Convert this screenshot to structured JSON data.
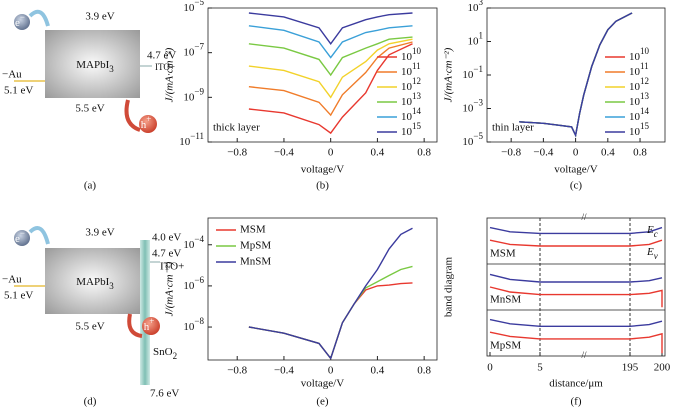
{
  "chart_data": [
    {
      "type": "line",
      "log_y": true,
      "caption": "(b)",
      "xlabel": "voltage/V",
      "ylabel": "J/(mA·cm⁻²)",
      "annotation": "thick layer",
      "legend": "center right",
      "xlim": [
        -1.05,
        0.91
      ],
      "xticks": [
        {
          "value": -0.8,
          "label": "−0.8"
        },
        {
          "value": -0.4,
          "label": "−0.4"
        },
        0,
        0.4,
        0.8
      ],
      "ylim": [
        1e-11,
        1e-05
      ],
      "yticks": [
        {
          "value": 1e-11,
          "label": [
            "10",
            "−11"
          ]
        },
        {
          "value": 1e-09,
          "label": [
            "10",
            "−9"
          ]
        },
        {
          "value": 1e-07,
          "label": [
            "10",
            "−7"
          ]
        },
        {
          "value": 1e-05,
          "label": [
            "10",
            "−5"
          ]
        }
      ],
      "x": [
        -0.7,
        -0.4,
        -0.1,
        0,
        0.1,
        0.3,
        0.4,
        0.5,
        0.7
      ],
      "series": [
        {
          "name": [
            "10",
            "10"
          ],
          "color": "#e8382f",
          "values": [
            3e-10,
            2e-10,
            6e-11,
            2.5e-11,
            1.3e-10,
            1.6e-09,
            1.6e-08,
            8e-08,
            2.5e-07
          ]
        },
        {
          "name": [
            "10",
            "11"
          ],
          "color": "#f07c2a",
          "values": [
            3e-09,
            2e-09,
            6e-10,
            1.6e-10,
            1.3e-09,
            1.3e-08,
            6e-08,
            1.6e-07,
            3e-07
          ]
        },
        {
          "name": [
            "10",
            "12"
          ],
          "color": "#f2d22a",
          "values": [
            2.5e-08,
            1.6e-08,
            5e-09,
            1e-09,
            8e-09,
            4e-08,
            1.3e-07,
            2.5e-07,
            4e-07
          ]
        },
        {
          "name": [
            "10",
            "13"
          ],
          "color": "#7ac943",
          "values": [
            2.5e-07,
            1.6e-07,
            5e-08,
            1e-08,
            6e-08,
            1.6e-07,
            2.5e-07,
            4e-07,
            5e-07
          ]
        },
        {
          "name": [
            "10",
            "14"
          ],
          "color": "#3aa0d8",
          "values": [
            1.6e-06,
            1e-06,
            3e-07,
            6e-08,
            3e-07,
            8e-07,
            1e-06,
            1.3e-06,
            1.6e-06
          ]
        },
        {
          "name": [
            "10",
            "15"
          ],
          "color": "#3b3b9e",
          "values": [
            6e-06,
            4e-06,
            1.3e-06,
            2.5e-07,
            1.3e-06,
            3e-06,
            4e-06,
            5e-06,
            6e-06
          ]
        }
      ]
    },
    {
      "type": "line",
      "log_y": true,
      "caption": "(c)",
      "xlabel": "voltage/V",
      "ylabel": "J/(mA·cm⁻²)",
      "annotation": "thin layer",
      "legend": "center right",
      "xlim": [
        -1.1,
        1.11
      ],
      "xticks": [
        {
          "value": -0.8,
          "label": "−0.8"
        },
        {
          "value": -0.4,
          "label": "−0.4"
        },
        0,
        0.4,
        0.8
      ],
      "ylim": [
        1e-05,
        1000
      ],
      "yticks": [
        {
          "value": 1e-05,
          "label": [
            "10",
            "−5"
          ]
        },
        {
          "value": 0.001,
          "label": [
            "10",
            "−3"
          ]
        },
        {
          "value": 0.1,
          "label": [
            "10",
            "−1"
          ]
        },
        {
          "value": 10,
          "label": [
            "10",
            "1"
          ]
        },
        {
          "value": 1000,
          "label": [
            "10",
            "3"
          ]
        }
      ],
      "x": [
        -0.7,
        -0.4,
        -0.2,
        -0.05,
        0,
        0.05,
        0.1,
        0.2,
        0.3,
        0.4,
        0.5,
        0.7
      ],
      "series": [
        {
          "name": [
            "10",
            "10"
          ],
          "color": "#e8382f",
          "values": [
            0.00016,
            0.00013,
            0.0001,
            8e-05,
            2.5e-05,
            0.0005,
            0.0063,
            0.32,
            6.3,
            50,
            160,
            500
          ]
        },
        {
          "name": [
            "10",
            "11"
          ],
          "color": "#f07c2a",
          "values": [
            0.00016,
            0.00013,
            0.0001,
            8e-05,
            2.5e-05,
            0.0005,
            0.0063,
            0.32,
            6.3,
            50,
            160,
            500
          ]
        },
        {
          "name": [
            "10",
            "12"
          ],
          "color": "#f2d22a",
          "values": [
            0.00016,
            0.00013,
            0.0001,
            8e-05,
            2.5e-05,
            0.0005,
            0.0063,
            0.32,
            6.3,
            50,
            160,
            500
          ]
        },
        {
          "name": [
            "10",
            "13"
          ],
          "color": "#7ac943",
          "values": [
            0.00016,
            0.00013,
            0.0001,
            8e-05,
            2.5e-05,
            0.0005,
            0.0063,
            0.32,
            6.3,
            50,
            160,
            500
          ]
        },
        {
          "name": [
            "10",
            "14"
          ],
          "color": "#3aa0d8",
          "values": [
            0.00016,
            0.00013,
            0.0001,
            8e-05,
            2.5e-05,
            0.0005,
            0.0063,
            0.32,
            6.3,
            50,
            160,
            500
          ]
        },
        {
          "name": [
            "10",
            "15"
          ],
          "color": "#3b3b9e",
          "values": [
            0.00016,
            0.00013,
            0.0001,
            8e-05,
            2.5e-05,
            0.0005,
            0.0063,
            0.32,
            6.3,
            50,
            160,
            500
          ]
        }
      ]
    },
    {
      "type": "line",
      "log_y": true,
      "caption": "(e)",
      "xlabel": "voltage/V",
      "ylabel": "J/(mA·cm⁻²)",
      "legend": "upper left",
      "xlim": [
        -1.05,
        0.91
      ],
      "xticks": [
        {
          "value": -0.8,
          "label": "−0.8"
        },
        {
          "value": -0.4,
          "label": "−0.4"
        },
        0,
        0.4,
        0.8
      ],
      "ylim": [
        2.5e-10,
        0.002
      ],
      "yticks": [
        {
          "value": 1e-08,
          "label": [
            "10",
            "−8"
          ]
        },
        {
          "value": 1e-06,
          "label": [
            "10",
            "−6"
          ]
        },
        {
          "value": 0.0001,
          "label": [
            "10",
            "−4"
          ]
        }
      ],
      "x": [
        -0.7,
        -0.4,
        -0.1,
        0,
        0.1,
        0.2,
        0.3,
        0.4,
        0.5,
        0.6,
        0.7
      ],
      "series": [
        {
          "name": "MSM",
          "color": "#e8382f",
          "values": [
            1e-08,
            5e-09,
            1.6e-09,
            3e-10,
            1.6e-08,
            1.3e-07,
            6.3e-07,
            1e-06,
            1.1e-06,
            1.3e-06,
            1.4e-06
          ]
        },
        {
          "name": "MpSM",
          "color": "#7ac943",
          "values": [
            1e-08,
            5e-09,
            1.6e-09,
            3e-10,
            1.6e-08,
            1.3e-07,
            8e-07,
            1.6e-06,
            3.2e-06,
            6.3e-06,
            8.9e-06
          ]
        },
        {
          "name": "MnSM",
          "color": "#3b3b9e",
          "values": [
            1e-08,
            5e-09,
            1.6e-09,
            3e-10,
            1.6e-08,
            1.3e-07,
            1e-06,
            6.3e-06,
            6.3e-05,
            0.00032,
            0.00063
          ]
        }
      ]
    },
    {
      "type": "band",
      "caption": "(f)",
      "xlabel": "distance/μm",
      "ylabel": "band diagram",
      "xlim": [
        0,
        200
      ],
      "xbreaks": [
        5,
        195
      ],
      "xticks": [
        0,
        5,
        195,
        200
      ],
      "band_labels": [
        {
          "main": "E",
          "sub": "c"
        },
        {
          "main": "E",
          "sub": "v"
        }
      ],
      "panels": [
        {
          "label": "MSM",
          "ylim": [
            0,
            1
          ],
          "series": [
            {
              "color": "#3b3b9e",
              "x": [
                0,
                2,
                5,
                195,
                198,
                200
              ],
              "values": [
                0.82,
                0.72,
                0.68,
                0.68,
                0.72,
                0.82
              ]
            },
            {
              "color": "#e8382f",
              "x": [
                0,
                2,
                5,
                195,
                198,
                200
              ],
              "values": [
                0.52,
                0.42,
                0.38,
                0.38,
                0.42,
                0.52
              ]
            }
          ]
        },
        {
          "label": "MnSM",
          "ylim": [
            0,
            1
          ],
          "series": [
            {
              "color": "#3b3b9e",
              "x": [
                0,
                2,
                5,
                195,
                198,
                200
              ],
              "values": [
                0.8,
                0.68,
                0.62,
                0.62,
                0.65,
                0.72
              ]
            },
            {
              "color": "#e8382f",
              "x": [
                0,
                2,
                5,
                195,
                198,
                200,
                200
              ],
              "values": [
                0.5,
                0.38,
                0.32,
                0.32,
                0.35,
                0.42,
                0.02
              ]
            }
          ]
        },
        {
          "label": "MpSM",
          "ylim": [
            0,
            1
          ],
          "series": [
            {
              "color": "#3b3b9e",
              "x": [
                0,
                2,
                5,
                195,
                198,
                200
              ],
              "values": [
                0.82,
                0.72,
                0.66,
                0.66,
                0.7,
                0.78
              ]
            },
            {
              "color": "#e8382f",
              "x": [
                0,
                2,
                5,
                195,
                198,
                200,
                200
              ],
              "values": [
                0.52,
                0.42,
                0.36,
                0.36,
                0.4,
                0.48,
                0.02
              ]
            }
          ]
        }
      ]
    }
  ],
  "diagrams": [
    {
      "caption": "(a)",
      "material": [
        "MAPbI",
        "3"
      ],
      "cb": "3.9 eV",
      "vb": "5.5 eV",
      "ito": "4.7 eV",
      "ito_label": "ITO+",
      "au_label": "−Au",
      "au": "5.1 eV",
      "electron": [
        "e",
        "−"
      ],
      "hole": [
        "h",
        "+"
      ]
    },
    {
      "caption": "(d)",
      "material": [
        "MAPbI",
        "3"
      ],
      "cb": "3.9 eV",
      "vb": "5.5 eV",
      "etl_cb": "4.0 eV",
      "ito": "4.7 eV",
      "ito_label": "ITO+",
      "au_label": "−Au",
      "au": "5.1 eV",
      "etl": [
        "SnO",
        "2"
      ],
      "etl_vb": "7.6 eV",
      "electron": [
        "e",
        "−"
      ],
      "hole": [
        "h",
        "+"
      ]
    }
  ]
}
